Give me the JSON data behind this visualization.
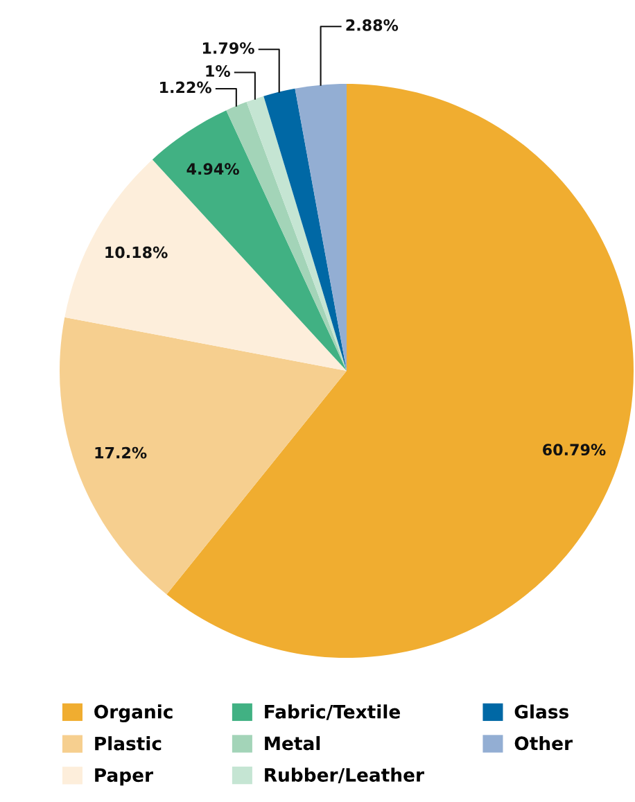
{
  "chart_data": {
    "type": "pie",
    "categories": [
      "Organic",
      "Plastic",
      "Paper",
      "Fabric/Textile",
      "Metal",
      "Rubber/Leather",
      "Glass",
      "Other"
    ],
    "values": [
      60.79,
      17.2,
      10.18,
      4.94,
      1.22,
      1,
      1.79,
      2.88
    ],
    "colors": [
      "#f0ad30",
      "#f6cf8f",
      "#fdeedb",
      "#41b183",
      "#a3d4b8",
      "#c5e5d3",
      "#0068a5",
      "#93aed3"
    ],
    "value_labels": [
      "60.79%",
      "17.2%",
      "10.18%",
      "4.94%",
      "1.22%",
      "1%",
      "1.79%",
      "2.88%"
    ],
    "legend": "bottom"
  }
}
